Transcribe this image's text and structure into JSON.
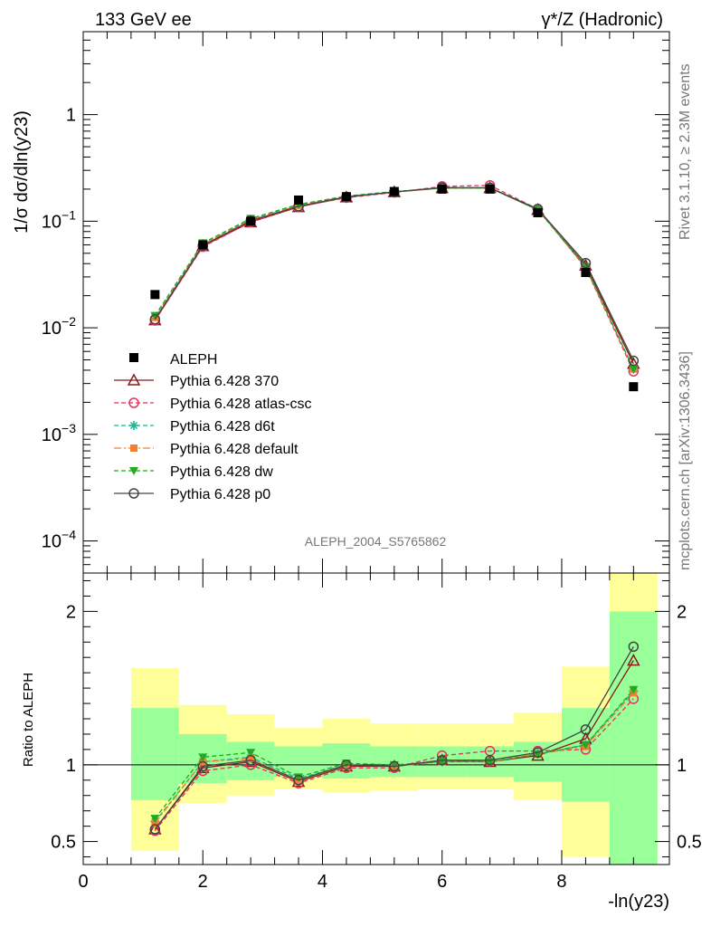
{
  "header": {
    "left": "133 GeV ee",
    "right": "γ*/Z (Hadronic)"
  },
  "side_text": {
    "rivet": "Rivet 3.1.10, ≥ 2.3M events",
    "site": "mcplots.cern.ch [arXiv:1306.3436]"
  },
  "watermark": "ALEPH_2004_S5765862",
  "chart_data": [
    {
      "type": "line",
      "name": "main",
      "ylabel": "1/σ dσ/dln(y23)",
      "yscale": "log",
      "ylim": [
        5e-05,
        6
      ],
      "xlim": [
        0,
        9.8
      ],
      "y_ticks": [
        {
          "v": 0.0001,
          "base": "10",
          "exp": "−4"
        },
        {
          "v": 0.001,
          "base": "10",
          "exp": "−3"
        },
        {
          "v": 0.01,
          "base": "10",
          "exp": "−2"
        },
        {
          "v": 0.1,
          "base": "10",
          "exp": "−1"
        },
        {
          "v": 1,
          "base": "1",
          "exp": ""
        }
      ],
      "x": [
        1.2,
        2.0,
        2.8,
        3.6,
        4.4,
        5.2,
        6.0,
        6.8,
        7.6,
        8.4,
        9.2
      ],
      "data": {
        "name": "ALEPH",
        "values": [
          0.0205,
          0.06,
          0.1,
          0.158,
          0.17,
          0.19,
          0.2,
          0.2,
          0.12,
          0.033,
          0.0028
        ]
      },
      "series": [
        {
          "name": "Pythia 6.428 370",
          "color": "#8b1a1a",
          "dash": "",
          "marker": "triangle-open",
          "values": [
            0.0118,
            0.0585,
            0.098,
            0.136,
            0.168,
            0.188,
            0.205,
            0.205,
            0.128,
            0.0385,
            0.0046
          ]
        },
        {
          "name": "Pythia 6.428 atlas-csc",
          "color": "#e8325a",
          "dash": "5,3",
          "marker": "circle-open",
          "values": [
            0.0117,
            0.0575,
            0.098,
            0.137,
            0.166,
            0.186,
            0.212,
            0.217,
            0.13,
            0.0365,
            0.0039
          ]
        },
        {
          "name": "Pythia 6.428 d6t",
          "color": "#17b890",
          "dash": "5,3",
          "marker": "asterisk",
          "values": [
            0.0127,
            0.0615,
            0.104,
            0.142,
            0.172,
            0.189,
            0.205,
            0.206,
            0.13,
            0.0375,
            0.0041
          ]
        },
        {
          "name": "Pythia 6.428 default",
          "color": "#f08030",
          "dash": "8,3,2,3",
          "marker": "square",
          "values": [
            0.0125,
            0.061,
            0.103,
            0.141,
            0.171,
            0.188,
            0.204,
            0.205,
            0.129,
            0.037,
            0.0041
          ]
        },
        {
          "name": "Pythia 6.428 dw",
          "color": "#22aa22",
          "dash": "5,3",
          "marker": "triangle-down",
          "values": [
            0.013,
            0.0625,
            0.106,
            0.144,
            0.172,
            0.19,
            0.204,
            0.205,
            0.128,
            0.0373,
            0.0041
          ]
        },
        {
          "name": "Pythia 6.428 p0",
          "color": "#444444",
          "dash": "",
          "marker": "circle-open",
          "values": [
            0.012,
            0.0592,
            0.101,
            0.138,
            0.169,
            0.188,
            0.207,
            0.206,
            0.13,
            0.0405,
            0.0049
          ]
        }
      ],
      "legend": "left"
    },
    {
      "type": "line",
      "name": "ratio",
      "ylabel": "Ratio to ALEPH",
      "xlabel": "-ln(y23)",
      "xlim": [
        0,
        9.8
      ],
      "ylim": [
        0.35,
        2.25
      ],
      "y_ticks": [
        0.5,
        1,
        2
      ],
      "x_ticks": [
        0,
        2,
        4,
        6,
        8
      ],
      "bands": [
        {
          "x0": 0.8,
          "x1": 1.6,
          "yellow": [
            0.44,
            1.63
          ],
          "green": [
            0.77,
            1.37
          ]
        },
        {
          "x0": 1.6,
          "x1": 2.4,
          "yellow": [
            0.75,
            1.39
          ],
          "green": [
            0.88,
            1.2
          ]
        },
        {
          "x0": 2.4,
          "x1": 3.2,
          "yellow": [
            0.8,
            1.33
          ],
          "green": [
            0.9,
            1.15
          ]
        },
        {
          "x0": 3.2,
          "x1": 4.0,
          "yellow": [
            0.84,
            1.24
          ],
          "green": [
            0.92,
            1.12
          ]
        },
        {
          "x0": 4.0,
          "x1": 4.8,
          "yellow": [
            0.82,
            1.3
          ],
          "green": [
            0.91,
            1.14
          ]
        },
        {
          "x0": 4.8,
          "x1": 5.6,
          "yellow": [
            0.83,
            1.27
          ],
          "green": [
            0.92,
            1.12
          ]
        },
        {
          "x0": 5.6,
          "x1": 6.4,
          "yellow": [
            0.84,
            1.27
          ],
          "green": [
            0.92,
            1.12
          ]
        },
        {
          "x0": 6.4,
          "x1": 7.2,
          "yellow": [
            0.84,
            1.27
          ],
          "green": [
            0.92,
            1.12
          ]
        },
        {
          "x0": 7.2,
          "x1": 8.0,
          "yellow": [
            0.77,
            1.34
          ],
          "green": [
            0.89,
            1.15
          ]
        },
        {
          "x0": 8.0,
          "x1": 8.8,
          "yellow": [
            0.4,
            1.64
          ],
          "green": [
            0.76,
            1.37
          ]
        },
        {
          "x0": 8.8,
          "x1": 9.6,
          "yellow": [
            0.35,
            2.25
          ],
          "green": [
            0.35,
            2.0
          ]
        }
      ],
      "series": [
        {
          "name": "Pythia 6.428 370",
          "values": [
            0.58,
            0.98,
            1.02,
            0.89,
            0.99,
            0.99,
            1.03,
            1.02,
            1.06,
            1.17,
            1.68
          ]
        },
        {
          "name": "Pythia 6.428 atlas-csc",
          "values": [
            0.57,
            0.96,
            1.0,
            0.88,
            0.98,
            0.98,
            1.06,
            1.09,
            1.09,
            1.1,
            1.43
          ]
        },
        {
          "name": "Pythia 6.428 d6t",
          "values": [
            0.63,
            1.02,
            1.05,
            0.91,
            1.0,
            0.99,
            1.02,
            1.02,
            1.07,
            1.13,
            1.48
          ]
        },
        {
          "name": "Pythia 6.428 default",
          "values": [
            0.62,
            1.02,
            1.04,
            0.9,
            1.0,
            0.99,
            1.02,
            1.02,
            1.07,
            1.12,
            1.47
          ]
        },
        {
          "name": "Pythia 6.428 dw",
          "values": [
            0.65,
            1.05,
            1.08,
            0.92,
            1.01,
            1.0,
            1.02,
            1.02,
            1.07,
            1.13,
            1.49
          ]
        },
        {
          "name": "Pythia 6.428 p0",
          "values": [
            0.58,
            0.99,
            1.03,
            0.9,
            1.0,
            0.99,
            1.03,
            1.03,
            1.08,
            1.23,
            1.77
          ]
        }
      ]
    }
  ]
}
